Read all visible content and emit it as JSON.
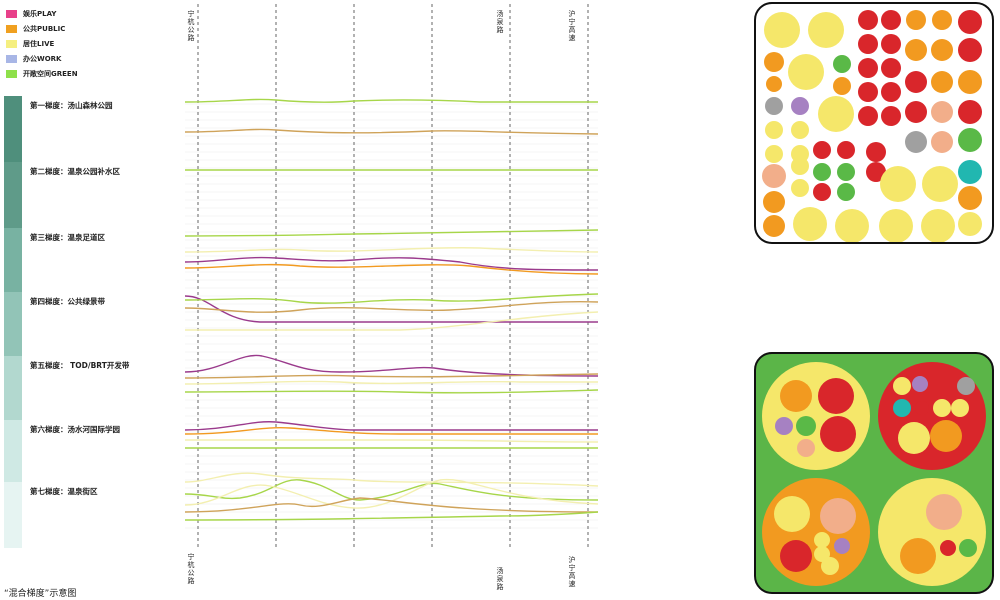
{
  "legend": [
    {
      "label": "娱乐PLAY",
      "color": "#e8408a"
    },
    {
      "label": "公共PUBLIC",
      "color": "#f0a020"
    },
    {
      "label": "居住LIVE",
      "color": "#f5ef80"
    },
    {
      "label": "办公WORK",
      "color": "#a8b6e6"
    },
    {
      "label": "开敞空间GREEN",
      "color": "#8ee04a"
    }
  ],
  "tiers": [
    {
      "label": "第一梯度：汤山森林公园",
      "color": "#4f8f7c"
    },
    {
      "label": "第二梯度：温泉公园补水区",
      "color": "#5f9b89"
    },
    {
      "label": "第三梯度：温泉足道区",
      "color": "#78b2a2"
    },
    {
      "label": "第四梯度：公共绿景带",
      "color": "#92c4b7"
    },
    {
      "label": "第五梯度：  TOD/BRT开发带",
      "color": "#b2d8cf"
    },
    {
      "label": "第六梯度：汤水河国际学园",
      "color": "#cfe9e4"
    },
    {
      "label": "第七梯度：温泉街区",
      "color": "#e6f4f2"
    }
  ],
  "roads_top": [
    "宁杭公路",
    "汤泉路",
    "沪宁高速"
  ],
  "roads_bottom": [
    "宁杭公路",
    "汤泉路",
    "沪宁高速"
  ],
  "caption": "“混合梯度”示意图",
  "colors": {
    "red": "#d9262b",
    "orange": "#f29a20",
    "yellow": "#f5e76a",
    "pale": "#f3efb0",
    "green": "#5ab947",
    "salmon": "#f2ae8a",
    "grey": "#a0a0a0",
    "purple": "#a681c2",
    "teal": "#21b7b0",
    "lime": "#a7d64a",
    "magenta": "#9a3a8c",
    "tan": "#cfa35a",
    "panelGreen": "#5bb548"
  }
}
